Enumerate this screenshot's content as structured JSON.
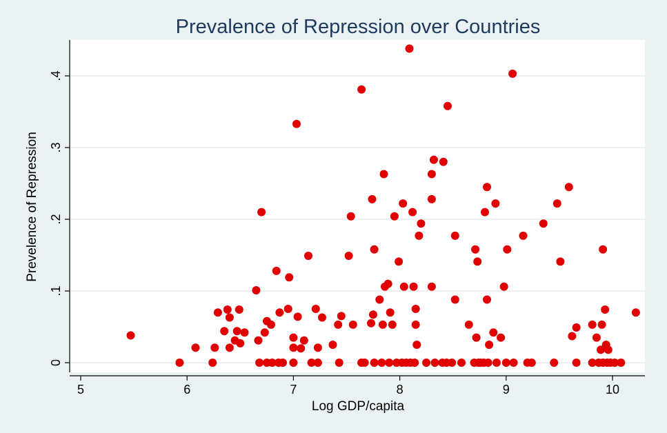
{
  "colors": {
    "background": "#eaf2f3",
    "plot_bg": "#ffffff",
    "title": "#1f3a5f",
    "axis": "#000000",
    "grid": "#e6eef0",
    "marker": "#e00000"
  },
  "chart_data": {
    "type": "scatter",
    "title": "Prevalence of Repression over Countries",
    "xlabel": "Log GDP/capita",
    "ylabel": "Prevelence of Repression",
    "xlim": [
      5,
      10.25
    ],
    "ylim": [
      -0.01,
      0.445
    ],
    "xticks": [
      5,
      6,
      7,
      8,
      9,
      10
    ],
    "xtick_labels": [
      "5",
      "6",
      "7",
      "8",
      "9",
      "10"
    ],
    "yticks": [
      0,
      0.1,
      0.2,
      0.3,
      0.4
    ],
    "ytick_labels": [
      "0",
      ".1",
      ".2",
      ".3",
      ".4"
    ],
    "grid": true,
    "legend": "none",
    "marker": "filled circle",
    "points": [
      [
        5.47,
        0.038
      ],
      [
        5.93,
        0
      ],
      [
        6.08,
        0.021
      ],
      [
        6.24,
        0
      ],
      [
        6.26,
        0.021
      ],
      [
        6.29,
        0.07
      ],
      [
        6.35,
        0.044
      ],
      [
        6.38,
        0.074
      ],
      [
        6.4,
        0.021
      ],
      [
        6.4,
        0.063
      ],
      [
        6.45,
        0.031
      ],
      [
        6.47,
        0.044
      ],
      [
        6.49,
        0.074
      ],
      [
        6.5,
        0.027
      ],
      [
        6.54,
        0.042
      ],
      [
        6.65,
        0.101
      ],
      [
        6.67,
        0.031
      ],
      [
        6.68,
        0
      ],
      [
        6.7,
        0.21
      ],
      [
        6.73,
        0.042
      ],
      [
        6.75,
        0.058
      ],
      [
        6.75,
        0
      ],
      [
        6.79,
        0.053
      ],
      [
        6.8,
        0
      ],
      [
        6.84,
        0.128
      ],
      [
        6.86,
        0
      ],
      [
        6.87,
        0.07
      ],
      [
        6.9,
        0
      ],
      [
        6.95,
        0.075
      ],
      [
        6.96,
        0.119
      ],
      [
        7.0,
        0.035
      ],
      [
        7.0,
        0.021
      ],
      [
        7.0,
        0
      ],
      [
        7.03,
        0.333
      ],
      [
        7.04,
        0.064
      ],
      [
        7.07,
        0.02
      ],
      [
        7.1,
        0.031
      ],
      [
        7.14,
        0.149
      ],
      [
        7.17,
        0
      ],
      [
        7.21,
        0.075
      ],
      [
        7.23,
        0.021
      ],
      [
        7.23,
        0
      ],
      [
        7.27,
        0.063
      ],
      [
        7.37,
        0.025
      ],
      [
        7.42,
        0.053
      ],
      [
        7.43,
        0
      ],
      [
        7.45,
        0.065
      ],
      [
        7.52,
        0.149
      ],
      [
        7.54,
        0.204
      ],
      [
        7.56,
        0.053
      ],
      [
        7.64,
        0.381
      ],
      [
        7.64,
        0
      ],
      [
        7.67,
        0
      ],
      [
        7.73,
        0.055
      ],
      [
        7.74,
        0.228
      ],
      [
        7.75,
        0.067
      ],
      [
        7.76,
        0.158
      ],
      [
        7.76,
        0
      ],
      [
        7.81,
        0.088
      ],
      [
        7.83,
        0
      ],
      [
        7.84,
        0.053
      ],
      [
        7.85,
        0.263
      ],
      [
        7.86,
        0.106
      ],
      [
        7.89,
        0.11
      ],
      [
        7.9,
        0
      ],
      [
        7.91,
        0.07
      ],
      [
        7.93,
        0.053
      ],
      [
        7.95,
        0.204
      ],
      [
        7.97,
        0
      ],
      [
        7.99,
        0.141
      ],
      [
        8.02,
        0
      ],
      [
        8.03,
        0.222
      ],
      [
        8.04,
        0.106
      ],
      [
        8.06,
        0
      ],
      [
        8.09,
        0.438
      ],
      [
        8.1,
        0
      ],
      [
        8.12,
        0.21
      ],
      [
        8.13,
        0.106
      ],
      [
        8.14,
        0
      ],
      [
        8.15,
        0.075
      ],
      [
        8.15,
        0.053
      ],
      [
        8.16,
        0.025
      ],
      [
        8.18,
        0.177
      ],
      [
        8.2,
        0.194
      ],
      [
        8.25,
        0
      ],
      [
        8.3,
        0.263
      ],
      [
        8.3,
        0.228
      ],
      [
        8.3,
        0.106
      ],
      [
        8.32,
        0.283
      ],
      [
        8.33,
        0
      ],
      [
        8.4,
        0
      ],
      [
        8.41,
        0.28
      ],
      [
        8.44,
        0
      ],
      [
        8.45,
        0.358
      ],
      [
        8.49,
        0
      ],
      [
        8.52,
        0.177
      ],
      [
        8.52,
        0.088
      ],
      [
        8.58,
        0
      ],
      [
        8.65,
        0.053
      ],
      [
        8.7,
        0
      ],
      [
        8.71,
        0.158
      ],
      [
        8.72,
        0.035
      ],
      [
        8.73,
        0.141
      ],
      [
        8.74,
        0
      ],
      [
        8.76,
        0
      ],
      [
        8.79,
        0
      ],
      [
        8.8,
        0.21
      ],
      [
        8.82,
        0.088
      ],
      [
        8.82,
        0.245
      ],
      [
        8.83,
        0
      ],
      [
        8.84,
        0.025
      ],
      [
        8.88,
        0.042
      ],
      [
        8.9,
        0.222
      ],
      [
        8.91,
        0
      ],
      [
        8.95,
        0.035
      ],
      [
        8.98,
        0.106
      ],
      [
        9.0,
        0
      ],
      [
        9.01,
        0.158
      ],
      [
        9.06,
        0.403
      ],
      [
        9.07,
        0
      ],
      [
        9.16,
        0.177
      ],
      [
        9.2,
        0
      ],
      [
        9.24,
        0
      ],
      [
        9.35,
        0.194
      ],
      [
        9.45,
        0
      ],
      [
        9.48,
        0.222
      ],
      [
        9.51,
        0.141
      ],
      [
        9.59,
        0.245
      ],
      [
        9.62,
        0.037
      ],
      [
        9.66,
        0.049
      ],
      [
        9.66,
        0
      ],
      [
        9.81,
        0.053
      ],
      [
        9.81,
        0
      ],
      [
        9.85,
        0.035
      ],
      [
        9.87,
        0
      ],
      [
        9.89,
        0.018
      ],
      [
        9.9,
        0.053
      ],
      [
        9.91,
        0.158
      ],
      [
        9.91,
        0
      ],
      [
        9.93,
        0.074
      ],
      [
        9.94,
        0.025
      ],
      [
        9.95,
        0
      ],
      [
        9.96,
        0.018
      ],
      [
        9.98,
        0
      ],
      [
        10.02,
        0
      ],
      [
        10.08,
        0
      ],
      [
        10.22,
        0.07
      ]
    ]
  }
}
